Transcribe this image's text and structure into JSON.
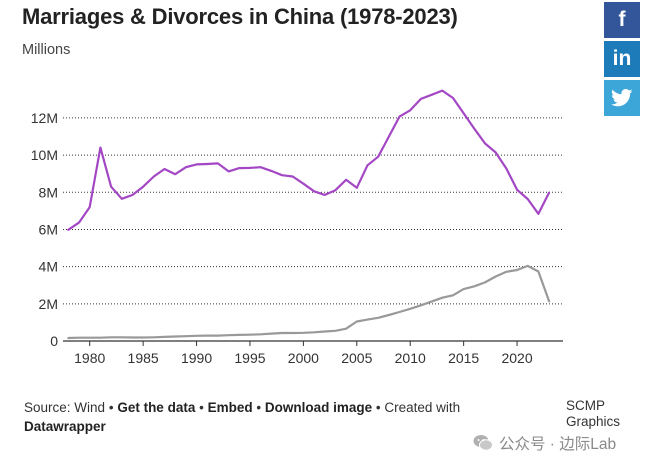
{
  "title": "Marriages & Divorces in China (1978-2023)",
  "subtitle": "Millions",
  "social": {
    "facebook": "f",
    "linkedin": "in",
    "twitter_icon": "twitter-bird-icon"
  },
  "footer": {
    "source": "Source: Wind",
    "sep": "•",
    "get_data": "Get the data",
    "embed": "Embed",
    "download": "Download image",
    "created_with": "Created with",
    "tool": "Datawrapper"
  },
  "credit": {
    "line1": "SCMP",
    "line2": "Graphics"
  },
  "watermark": "公众号 · 边际Lab",
  "colors": {
    "marriages": "#a347c4",
    "divorces": "#999999",
    "facebook": "#33569b",
    "linkedin": "#1d7bb9",
    "twitter": "#3da6d9"
  },
  "chart_data": {
    "type": "line",
    "title": "Marriages & Divorces in China (1978-2023)",
    "ylabel": "Millions",
    "xlabel": "",
    "xlim": [
      1977.5,
      2024.3
    ],
    "ylim": [
      0,
      13.5
    ],
    "x_ticks": [
      1980,
      1985,
      1990,
      1995,
      2000,
      2005,
      2010,
      2015,
      2020
    ],
    "y_ticks": [
      {
        "value": 0,
        "label": "0"
      },
      {
        "value": 2,
        "label": "2M"
      },
      {
        "value": 4,
        "label": "4M"
      },
      {
        "value": 6,
        "label": "6M"
      },
      {
        "value": 8,
        "label": "8M"
      },
      {
        "value": 10,
        "label": "10M"
      },
      {
        "value": 12,
        "label": "12M"
      }
    ],
    "grid": "horizontal dotted",
    "x": [
      1978,
      1979,
      1980,
      1981,
      1982,
      1983,
      1984,
      1985,
      1986,
      1987,
      1988,
      1989,
      1990,
      1991,
      1992,
      1993,
      1994,
      1995,
      1996,
      1997,
      1998,
      1999,
      2000,
      2001,
      2002,
      2003,
      2004,
      2005,
      2006,
      2007,
      2008,
      2009,
      2010,
      2011,
      2012,
      2013,
      2014,
      2015,
      2016,
      2017,
      2018,
      2019,
      2020,
      2021,
      2022,
      2023
    ],
    "series": [
      {
        "key": "marriages",
        "values": [
          5.98,
          6.37,
          7.2,
          10.4,
          8.3,
          7.65,
          7.85,
          8.3,
          8.85,
          9.25,
          8.97,
          9.35,
          9.5,
          9.52,
          9.55,
          9.12,
          9.3,
          9.31,
          9.35,
          9.15,
          8.92,
          8.85,
          8.46,
          8.05,
          7.86,
          8.11,
          8.67,
          8.24,
          9.45,
          9.91,
          11.0,
          12.07,
          12.41,
          13.02,
          13.24,
          13.47,
          13.07,
          12.25,
          11.42,
          10.63,
          10.14,
          9.27,
          8.13,
          7.64,
          6.84,
          7.98
        ]
      },
      {
        "key": "divorces",
        "values": [
          0.16,
          0.18,
          0.18,
          0.18,
          0.2,
          0.2,
          0.19,
          0.19,
          0.2,
          0.22,
          0.24,
          0.26,
          0.28,
          0.29,
          0.29,
          0.31,
          0.33,
          0.34,
          0.36,
          0.4,
          0.43,
          0.43,
          0.44,
          0.47,
          0.51,
          0.55,
          0.66,
          1.05,
          1.15,
          1.25,
          1.4,
          1.56,
          1.73,
          1.92,
          2.12,
          2.33,
          2.46,
          2.79,
          2.94,
          3.15,
          3.47,
          3.72,
          3.82,
          4.04,
          3.74,
          2.14
        ]
      }
    ]
  }
}
